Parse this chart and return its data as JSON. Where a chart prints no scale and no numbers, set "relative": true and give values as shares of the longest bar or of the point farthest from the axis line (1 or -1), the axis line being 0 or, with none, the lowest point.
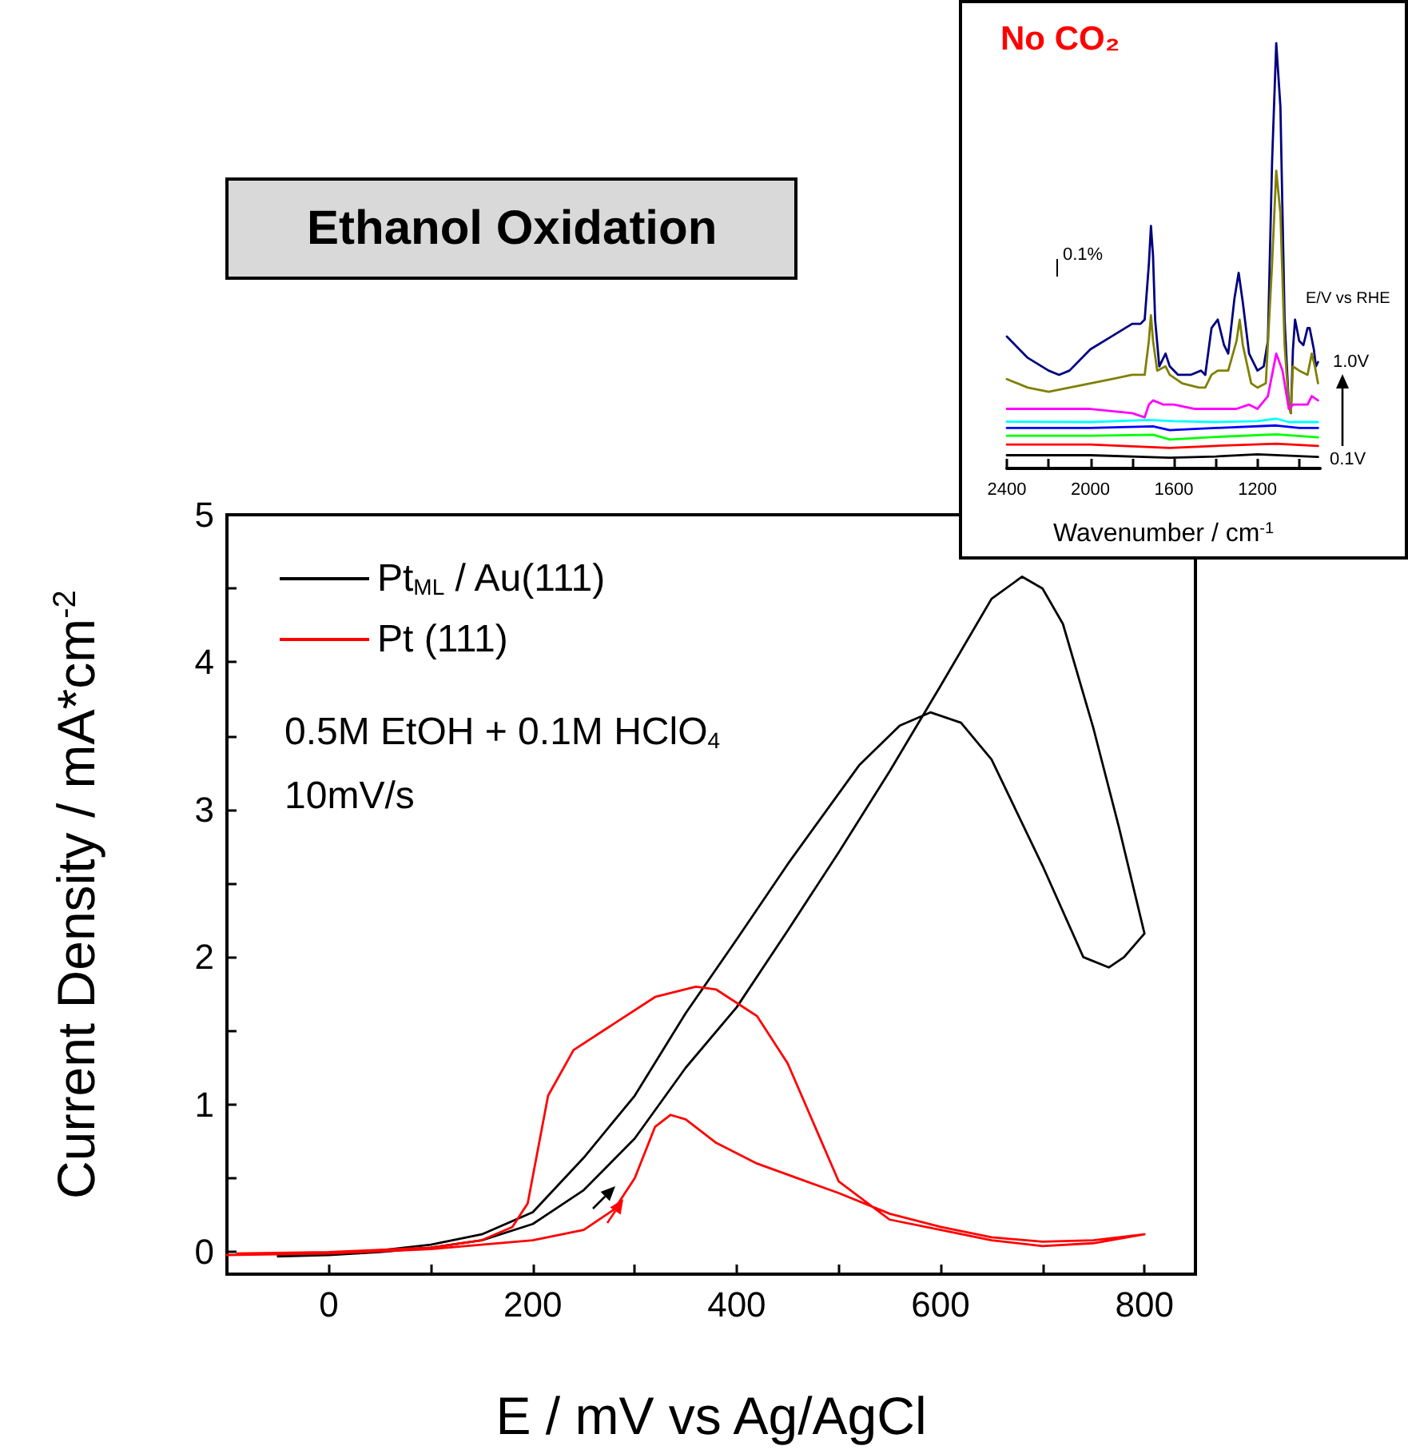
{
  "chart_data": [
    {
      "type": "line",
      "title": "Ethanol Oxidation",
      "xlabel": "E / mV vs Ag/AgCl",
      "ylabel": "Current Density / mA*cm$^{-2}$",
      "xlim": [
        -100,
        850
      ],
      "ylim": [
        -0.15,
        5
      ],
      "xticks": [
        0,
        {
          "value": 100,
          "label": null
        },
        200,
        {
          "value": 300,
          "label": null
        },
        400,
        {
          "value": 500,
          "label": null
        },
        600,
        {
          "value": 700,
          "label": null
        },
        800
      ],
      "yticks": [
        0,
        {
          "value": 0.5,
          "label": null
        },
        1,
        {
          "value": 1.5,
          "label": null
        },
        2,
        {
          "value": 2.5,
          "label": null
        },
        3,
        {
          "value": 3.5,
          "label": null
        },
        4,
        {
          "value": 4.5,
          "label": null
        },
        5
      ],
      "legend": "top left",
      "marker": "none",
      "line_style": "solid",
      "annotations": [
        "0.5M EtOH + 0.1M HClO$_{4}$",
        "10mV/s"
      ],
      "series": [
        {
          "name": "Pt$_{ML}$ / Au(111)",
          "color": "#000000",
          "x": [
            -50,
            0,
            50,
            100,
            150,
            200,
            250,
            300,
            350,
            400,
            450,
            500,
            550,
            600,
            650,
            680,
            700,
            720,
            750,
            775,
            800,
            780,
            765,
            740,
            700,
            650,
            620,
            590,
            560,
            520,
            450,
            400,
            350,
            300,
            250,
            200,
            150,
            100,
            50,
            0,
            -50
          ],
          "values": [
            -0.03,
            -0.02,
            0,
            0.03,
            0.08,
            0.19,
            0.42,
            0.77,
            1.25,
            1.66,
            2.18,
            2.71,
            3.26,
            3.84,
            4.43,
            4.58,
            4.5,
            4.26,
            3.55,
            2.88,
            2.16,
            2.0,
            1.93,
            2.0,
            2.62,
            3.34,
            3.59,
            3.66,
            3.57,
            3.3,
            2.63,
            2.12,
            1.62,
            1.06,
            0.64,
            0.27,
            0.12,
            0.05,
            0.01,
            -0.01,
            -0.02
          ]
        },
        {
          "name": "Pt (111)",
          "color": "#ff0000",
          "x": [
            -100,
            0,
            100,
            200,
            250,
            280,
            300,
            320,
            335,
            350,
            380,
            420,
            460,
            500,
            550,
            600,
            650,
            700,
            750,
            800,
            750,
            700,
            650,
            600,
            550,
            500,
            450,
            420,
            380,
            360,
            320,
            280,
            240,
            215,
            195,
            180,
            150,
            100,
            0,
            -90
          ],
          "values": [
            -0.02,
            -0.01,
            0.02,
            0.08,
            0.15,
            0.29,
            0.5,
            0.85,
            0.93,
            0.9,
            0.74,
            0.6,
            0.5,
            0.4,
            0.26,
            0.17,
            0.1,
            0.07,
            0.08,
            0.12,
            0.06,
            0.04,
            0.08,
            0.15,
            0.22,
            0.48,
            1.28,
            1.6,
            1.78,
            1.8,
            1.73,
            1.55,
            1.37,
            1.06,
            0.33,
            0.17,
            0.08,
            0.03,
            0,
            -0.01
          ]
        }
      ]
    },
    {
      "type": "line",
      "title": "No CO₂",
      "xlabel": "Wavenumber / cm$^{-1}$",
      "relative": true,
      "tick_labels": "x",
      "xlim": [
        2400,
        900
      ],
      "xticks": [
        2400,
        {
          "value": 2200,
          "label": null
        },
        2000,
        {
          "value": 1800,
          "label": null
        },
        1600,
        {
          "value": 1400,
          "label": null
        },
        1200,
        {
          "value": 1000,
          "label": null
        }
      ],
      "marker": "none",
      "line_style": "solid",
      "annotations": [
        "0.1%",
        "E/V vs RHE",
        "1.0V",
        "0.1V"
      ],
      "series": [
        {
          "color": "#000080",
          "x": [
            2400,
            2300,
            2200,
            2150,
            2100,
            2000,
            1900,
            1800,
            1760,
            1740,
            1720,
            1710,
            1700,
            1690,
            1670,
            1640,
            1620,
            1580,
            1520,
            1470,
            1450,
            1420,
            1390,
            1360,
            1340,
            1310,
            1290,
            1270,
            1240,
            1200,
            1170,
            1150,
            1130,
            1110,
            1090,
            1070,
            1050,
            1040,
            1030,
            1020,
            1000,
            980,
            960,
            950,
            930,
            920,
            910
          ],
          "values": [
            0.31,
            0.26,
            0.23,
            0.22,
            0.23,
            0.28,
            0.31,
            0.34,
            0.34,
            0.35,
            0.48,
            0.57,
            0.5,
            0.35,
            0.24,
            0.27,
            0.24,
            0.22,
            0.22,
            0.23,
            0.22,
            0.33,
            0.35,
            0.29,
            0.27,
            0.4,
            0.46,
            0.39,
            0.27,
            0.23,
            0.24,
            0.3,
            0.72,
            1,
            0.85,
            0.35,
            0.15,
            0.13,
            0.28,
            0.35,
            0.3,
            0.29,
            0.33,
            0.33,
            0.28,
            0.24,
            0.25
          ]
        },
        {
          "color": "#808000",
          "x": [
            2400,
            2300,
            2200,
            2100,
            2000,
            1900,
            1800,
            1740,
            1720,
            1710,
            1700,
            1680,
            1640,
            1620,
            1560,
            1480,
            1450,
            1420,
            1390,
            1340,
            1300,
            1285,
            1270,
            1230,
            1200,
            1160,
            1130,
            1110,
            1090,
            1070,
            1050,
            1040,
            1030,
            1000,
            960,
            940,
            925,
            910
          ],
          "values": [
            0.21,
            0.19,
            0.18,
            0.19,
            0.2,
            0.21,
            0.22,
            0.22,
            0.3,
            0.36,
            0.3,
            0.23,
            0.24,
            0.22,
            0.2,
            0.19,
            0.19,
            0.22,
            0.23,
            0.23,
            0.3,
            0.35,
            0.29,
            0.2,
            0.19,
            0.2,
            0.48,
            0.7,
            0.6,
            0.29,
            0.15,
            0.13,
            0.24,
            0.23,
            0.22,
            0.27,
            0.24,
            0.2
          ]
        },
        {
          "color": "#ff00ff",
          "x": [
            2400,
            2200,
            2000,
            1800,
            1740,
            1720,
            1700,
            1650,
            1600,
            1500,
            1400,
            1300,
            1240,
            1200,
            1150,
            1110,
            1080,
            1050,
            1030,
            960,
            940,
            910
          ],
          "values": [
            0.14,
            0.14,
            0.14,
            0.13,
            0.12,
            0.15,
            0.16,
            0.15,
            0.15,
            0.14,
            0.14,
            0.14,
            0.15,
            0.14,
            0.17,
            0.27,
            0.23,
            0.14,
            0.15,
            0.15,
            0.17,
            0.16
          ]
        },
        {
          "color": "#00ffff",
          "x": [
            2400,
            2000,
            1720,
            1600,
            1400,
            1200,
            1110,
            1050,
            910
          ],
          "values": [
            0.11,
            0.109,
            0.114,
            0.111,
            0.109,
            0.111,
            0.117,
            0.109,
            0.109
          ]
        },
        {
          "color": "#0000ff",
          "x": [
            2400,
            2000,
            1700,
            1620,
            1400,
            1110,
            1000,
            910
          ],
          "values": [
            0.095,
            0.095,
            0.099,
            0.09,
            0.095,
            0.101,
            0.095,
            0.095
          ]
        },
        {
          "color": "#00ff00",
          "x": [
            2400,
            2000,
            1700,
            1620,
            1400,
            1110,
            910
          ],
          "values": [
            0.077,
            0.077,
            0.079,
            0.068,
            0.074,
            0.08,
            0.073
          ]
        },
        {
          "color": "#ff0000",
          "x": [
            2400,
            2000,
            1620,
            1400,
            1110,
            910
          ],
          "values": [
            0.056,
            0.056,
            0.048,
            0.053,
            0.058,
            0.053
          ]
        },
        {
          "color": "#000000",
          "x": [
            2400,
            2000,
            1620,
            1400,
            1200,
            910
          ],
          "values": [
            0.031,
            0.031,
            0.025,
            0.028,
            0.033,
            0.027
          ]
        }
      ]
    }
  ]
}
